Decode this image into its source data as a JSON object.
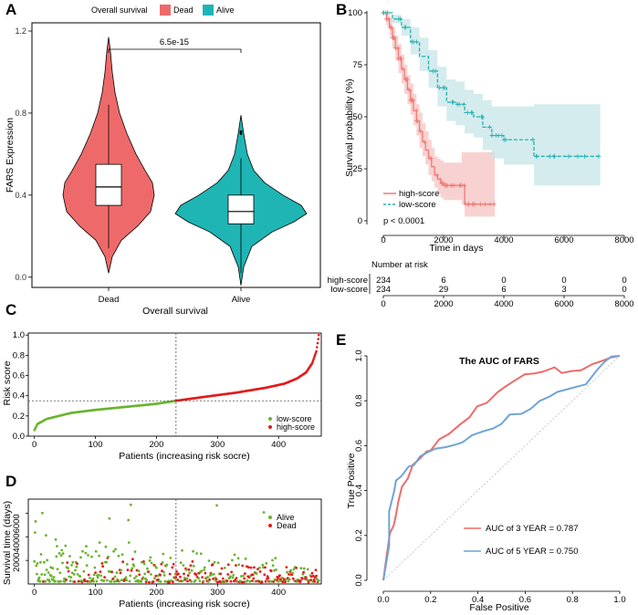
{
  "colors": {
    "dead": "#EE6A6A",
    "alive": "#1FB5B5",
    "high": "#EE7A75",
    "low": "#27AEB1",
    "high_ci": "#F6C3C0",
    "low_ci": "#C5E6E7",
    "pt_low": "#6AB42D",
    "pt_high": "#E31A1C",
    "roc3": "#EE6B6B",
    "roc5": "#6FA4D6"
  },
  "panel_labels": {
    "a": "A",
    "b": "B",
    "c": "C",
    "d": "D",
    "e": "E"
  },
  "chart_data": [
    {
      "id": "A",
      "type": "violin",
      "title": "",
      "legend_title": "Overall survival",
      "legend": [
        "Dead",
        "Alive"
      ],
      "categories": [
        "Dead",
        "Alive"
      ],
      "xlabel": "Overall survival",
      "ylabel": "FARS Expression",
      "ylim": [
        -0.05,
        1.24
      ],
      "yticks": [
        0.0,
        0.4,
        0.8,
        1.2
      ],
      "ytick_labels": [
        "0.0",
        "0.4",
        "0.8",
        "1.2"
      ],
      "p_value": "6.5e-15",
      "groups": [
        {
          "name": "Dead",
          "min": 0.14,
          "q1": 0.35,
          "median": 0.44,
          "q3": 0.55,
          "max": 0.84,
          "tail_top": 1.17,
          "tail_bottom": 0.02
        },
        {
          "name": "Alive",
          "min": 0.02,
          "q1": 0.26,
          "median": 0.32,
          "q3": 0.4,
          "max": 0.58,
          "tail_top": 0.79,
          "tail_bottom": -0.04
        }
      ]
    },
    {
      "id": "B",
      "type": "line",
      "title": "",
      "xlabel": "Time in days",
      "ylabel": "Survival probability (%)",
      "xlim": [
        0,
        8000
      ],
      "ylim": [
        0,
        100
      ],
      "xticks": [
        0,
        2000,
        4000,
        6000,
        8000
      ],
      "xtick_labels": [
        "0",
        "2000",
        "4000",
        "6000",
        "8000"
      ],
      "yticks": [
        0,
        25,
        50,
        75,
        100
      ],
      "ytick_labels": [
        "0",
        "25",
        "50",
        "75",
        "100"
      ],
      "pvalue_text": "p < 0.0001",
      "series": [
        {
          "name": "high-score",
          "x": [
            0,
            100,
            200,
            300,
            400,
            500,
            600,
            700,
            800,
            900,
            1000,
            1100,
            1200,
            1300,
            1400,
            1500,
            1600,
            1700,
            1800,
            1900,
            2000,
            2600,
            2700,
            3700
          ],
          "y": [
            100,
            97,
            93,
            88,
            83,
            78,
            73,
            68,
            63,
            58,
            53,
            48,
            43,
            38,
            34,
            30,
            26,
            22,
            20,
            18,
            17,
            17,
            8,
            8
          ],
          "ci_upper": [
            100,
            99,
            97,
            93,
            89,
            85,
            80,
            75,
            70,
            66,
            61,
            56,
            52,
            47,
            43,
            39,
            35,
            31,
            30,
            29,
            28,
            33,
            33,
            33
          ],
          "ci_lower": [
            100,
            94,
            89,
            83,
            77,
            71,
            66,
            61,
            56,
            51,
            46,
            41,
            35,
            31,
            27,
            22,
            19,
            16,
            13,
            11,
            10,
            8,
            2,
            2
          ]
        },
        {
          "name": "low-score",
          "x": [
            0,
            300,
            600,
            900,
            1200,
            1500,
            1800,
            2100,
            2400,
            2700,
            3000,
            3300,
            3600,
            4000,
            4500,
            5000,
            5500,
            6000,
            6500,
            7200
          ],
          "y": [
            100,
            97,
            93,
            86,
            79,
            72,
            64,
            57,
            56,
            52,
            50,
            45,
            41,
            39,
            39,
            31,
            31,
            31,
            31,
            31
          ],
          "ci_upper": [
            100,
            99,
            97,
            93,
            88,
            82,
            74,
            68,
            67,
            63,
            61,
            58,
            55,
            55,
            55,
            56,
            56,
            56,
            56,
            56
          ],
          "ci_lower": [
            100,
            95,
            89,
            80,
            72,
            64,
            55,
            48,
            46,
            42,
            40,
            34,
            30,
            27,
            27,
            17,
            17,
            17,
            17,
            17
          ]
        }
      ],
      "legend": [
        "high-score",
        "low-score"
      ]
    },
    {
      "id": "B-risk",
      "type": "table",
      "title": "Number at risk",
      "columns": [
        "0",
        "2000",
        "4000",
        "6000",
        "8000"
      ],
      "rows": [
        {
          "name": "high-score",
          "values": [
            "234",
            "6",
            "0",
            "0",
            "0"
          ]
        },
        {
          "name": "low-score",
          "values": [
            "234",
            "29",
            "6",
            "3",
            "0"
          ]
        }
      ]
    },
    {
      "id": "C",
      "type": "scatter",
      "title": "",
      "xlabel": "Patients (increasing risk socre)",
      "ylabel": "Risk score",
      "xlim": [
        -10,
        470
      ],
      "ylim": [
        0.0,
        1.02
      ],
      "xticks": [
        0,
        100,
        200,
        300,
        400
      ],
      "xtick_labels": [
        "0",
        "100",
        "200",
        "300",
        "400"
      ],
      "yticks": [
        0.0,
        0.2,
        0.4,
        0.6,
        0.8,
        1.0
      ],
      "ytick_labels": [
        "0.0",
        "0.2",
        "0.4",
        "0.6",
        "0.8",
        "1.0"
      ],
      "cutoff_x": 232,
      "cutoff_y": 0.35,
      "legend": [
        "low-score",
        "high-score"
      ],
      "n": 467,
      "curve_anchors": [
        [
          0,
          0.06
        ],
        [
          5,
          0.12
        ],
        [
          20,
          0.17
        ],
        [
          60,
          0.23
        ],
        [
          100,
          0.26
        ],
        [
          150,
          0.29
        ],
        [
          200,
          0.32
        ],
        [
          232,
          0.35
        ],
        [
          280,
          0.39
        ],
        [
          330,
          0.43
        ],
        [
          380,
          0.48
        ],
        [
          410,
          0.52
        ],
        [
          430,
          0.57
        ],
        [
          445,
          0.63
        ],
        [
          455,
          0.72
        ],
        [
          462,
          0.84
        ],
        [
          466,
          1.0
        ]
      ]
    },
    {
      "id": "D",
      "type": "scatter",
      "title": "",
      "xlabel": "Patients (increasing risk socre)",
      "ylabel": "Survival time (days)",
      "xlim": [
        -10,
        470
      ],
      "ylim": [
        0,
        7200
      ],
      "xticks": [
        0,
        100,
        200,
        300,
        400
      ],
      "xtick_labels": [
        "0",
        "100",
        "200",
        "300",
        "400"
      ],
      "yticks": [
        2000,
        4000,
        6000
      ],
      "ytick_labels": [
        "2000",
        "4000",
        "6000"
      ],
      "cutoff_x": 232,
      "legend": [
        "Alive",
        "Dead"
      ],
      "n": 467
    },
    {
      "id": "E",
      "type": "line",
      "title": "The AUC of FARS",
      "xlabel": "False Positive",
      "ylabel": "True Positive",
      "xlim": [
        0,
        1
      ],
      "ylim": [
        0,
        1
      ],
      "xticks": [
        0.0,
        0.2,
        0.4,
        0.6,
        0.8,
        1.0
      ],
      "xtick_labels": [
        "0.0",
        "0.2",
        "0.4",
        "0.6",
        "0.8",
        "1.0"
      ],
      "yticks": [
        0.0,
        0.2,
        0.4,
        0.6,
        0.8,
        1.0
      ],
      "ytick_labels": [
        "0.0",
        "0.2",
        "0.4",
        "0.6",
        "0.8",
        "1.0"
      ],
      "series": [
        {
          "name": "AUC of 3 YEAR = 0.787",
          "x": [
            0,
            0.02,
            0.03,
            0.04,
            0.05,
            0.06,
            0.08,
            0.1,
            0.13,
            0.16,
            0.18,
            0.2,
            0.24,
            0.28,
            0.32,
            0.36,
            0.4,
            0.44,
            0.48,
            0.52,
            0.56,
            0.6,
            0.64,
            0.68,
            0.72,
            0.76,
            0.8,
            0.84,
            0.88,
            0.92,
            0.96,
            1.0
          ],
          "y": [
            0,
            0.1,
            0.2,
            0.25,
            0.3,
            0.35,
            0.42,
            0.46,
            0.52,
            0.55,
            0.57,
            0.58,
            0.62,
            0.66,
            0.7,
            0.73,
            0.77,
            0.8,
            0.83,
            0.86,
            0.89,
            0.91,
            0.92,
            0.93,
            0.94,
            0.93,
            0.94,
            0.94,
            0.96,
            0.98,
            0.99,
            1.0
          ]
        },
        {
          "name": "AUC of 5 YEAR = 0.750",
          "x": [
            0,
            0.02,
            0.03,
            0.04,
            0.05,
            0.07,
            0.09,
            0.11,
            0.13,
            0.15,
            0.18,
            0.22,
            0.26,
            0.3,
            0.34,
            0.38,
            0.42,
            0.46,
            0.5,
            0.54,
            0.58,
            0.62,
            0.66,
            0.7,
            0.74,
            0.78,
            0.82,
            0.86,
            0.9,
            0.94,
            0.97,
            1.0
          ],
          "y": [
            0,
            0.15,
            0.3,
            0.4,
            0.44,
            0.46,
            0.48,
            0.5,
            0.52,
            0.55,
            0.57,
            0.58,
            0.59,
            0.6,
            0.62,
            0.64,
            0.66,
            0.68,
            0.7,
            0.73,
            0.75,
            0.77,
            0.79,
            0.82,
            0.84,
            0.86,
            0.87,
            0.88,
            0.93,
            0.97,
            0.99,
            1.0
          ]
        }
      ],
      "legend": [
        "AUC of 3 YEAR = 0.787",
        "AUC of 5 YEAR = 0.750"
      ]
    }
  ]
}
